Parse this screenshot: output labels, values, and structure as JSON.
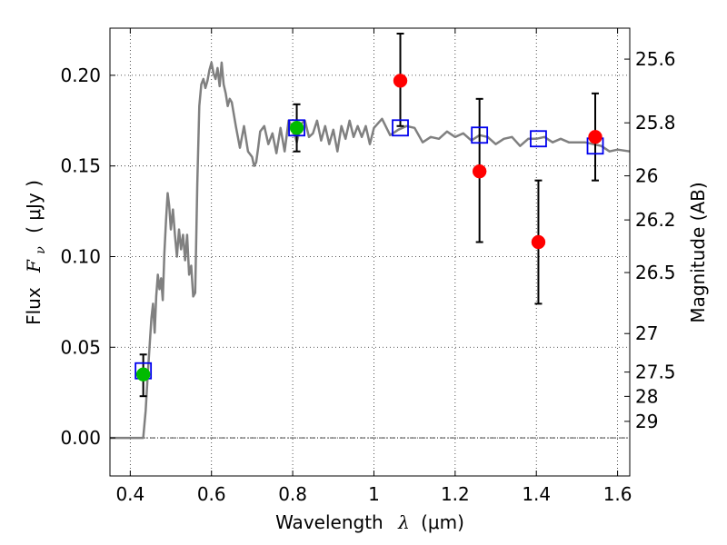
{
  "chart_data": {
    "type": "scatter",
    "xlabel": "Wavelength",
    "xlabel_symbol": "λ",
    "xlabel_unit": "(μm)",
    "ylabel": "Flux",
    "ylabel_symbol": "F",
    "ylabel_subscript": "ν",
    "ylabel_unit": "( μJy )",
    "y2label": "Magnitude (AB)",
    "xlim": [
      0.35,
      1.63
    ],
    "ylim": [
      -0.021,
      0.226
    ],
    "grid": true,
    "x_ticks": [
      {
        "value": 0.4,
        "label": "0.4"
      },
      {
        "value": 0.6,
        "label": "0.6"
      },
      {
        "value": 0.8,
        "label": "0.8"
      },
      {
        "value": 1.0,
        "label": "1"
      },
      {
        "value": 1.2,
        "label": "1.2"
      },
      {
        "value": 1.4,
        "label": "1.4"
      },
      {
        "value": 1.6,
        "label": "1.6"
      }
    ],
    "y_ticks": [
      {
        "value": 0.0,
        "label": "0.00"
      },
      {
        "value": 0.05,
        "label": "0.05"
      },
      {
        "value": 0.1,
        "label": "0.10"
      },
      {
        "value": 0.15,
        "label": "0.15"
      },
      {
        "value": 0.2,
        "label": "0.20"
      }
    ],
    "y2_ticks": [
      {
        "value": 25.6,
        "label": "25.6"
      },
      {
        "value": 25.8,
        "label": "25.8"
      },
      {
        "value": 26.0,
        "label": "26"
      },
      {
        "value": 26.2,
        "label": "26.2"
      },
      {
        "value": 26.5,
        "label": "26.5"
      },
      {
        "value": 27.0,
        "label": "27"
      },
      {
        "value": 27.5,
        "label": "27.5"
      },
      {
        "value": 28.0,
        "label": "28"
      },
      {
        "value": 29.0,
        "label": "29"
      }
    ],
    "zero_line": 0.0,
    "spectrum": {
      "color": "#808080",
      "x": [
        0.35,
        0.37,
        0.39,
        0.41,
        0.425,
        0.432,
        0.438,
        0.443,
        0.448,
        0.452,
        0.456,
        0.46,
        0.464,
        0.468,
        0.472,
        0.476,
        0.48,
        0.484,
        0.488,
        0.492,
        0.496,
        0.5,
        0.505,
        0.51,
        0.515,
        0.52,
        0.525,
        0.53,
        0.535,
        0.54,
        0.545,
        0.55,
        0.555,
        0.56,
        0.565,
        0.57,
        0.575,
        0.58,
        0.585,
        0.59,
        0.595,
        0.6,
        0.605,
        0.61,
        0.615,
        0.62,
        0.625,
        0.63,
        0.635,
        0.64,
        0.645,
        0.65,
        0.66,
        0.67,
        0.68,
        0.69,
        0.7,
        0.705,
        0.71,
        0.715,
        0.72,
        0.73,
        0.74,
        0.75,
        0.76,
        0.77,
        0.78,
        0.79,
        0.8,
        0.81,
        0.82,
        0.83,
        0.84,
        0.85,
        0.86,
        0.87,
        0.88,
        0.89,
        0.9,
        0.91,
        0.92,
        0.93,
        0.94,
        0.95,
        0.96,
        0.97,
        0.98,
        0.99,
        1.0,
        1.02,
        1.04,
        1.06,
        1.08,
        1.1,
        1.12,
        1.14,
        1.16,
        1.18,
        1.2,
        1.22,
        1.24,
        1.26,
        1.28,
        1.3,
        1.32,
        1.34,
        1.36,
        1.38,
        1.4,
        1.42,
        1.44,
        1.46,
        1.48,
        1.5,
        1.52,
        1.54,
        1.56,
        1.58,
        1.6,
        1.63
      ],
      "y": [
        0.0,
        0.0,
        0.0,
        0.0,
        0.0,
        0.0,
        0.015,
        0.035,
        0.052,
        0.066,
        0.074,
        0.058,
        0.078,
        0.09,
        0.082,
        0.088,
        0.076,
        0.102,
        0.12,
        0.135,
        0.128,
        0.115,
        0.126,
        0.112,
        0.1,
        0.115,
        0.104,
        0.112,
        0.098,
        0.112,
        0.09,
        0.095,
        0.078,
        0.08,
        0.14,
        0.183,
        0.195,
        0.198,
        0.193,
        0.197,
        0.203,
        0.207,
        0.201,
        0.198,
        0.204,
        0.194,
        0.207,
        0.195,
        0.19,
        0.183,
        0.187,
        0.185,
        0.172,
        0.16,
        0.172,
        0.158,
        0.155,
        0.15,
        0.152,
        0.16,
        0.169,
        0.172,
        0.162,
        0.168,
        0.157,
        0.171,
        0.158,
        0.175,
        0.171,
        0.163,
        0.173,
        0.175,
        0.166,
        0.168,
        0.175,
        0.164,
        0.172,
        0.162,
        0.17,
        0.158,
        0.172,
        0.165,
        0.175,
        0.166,
        0.172,
        0.166,
        0.172,
        0.162,
        0.171,
        0.176,
        0.167,
        0.17,
        0.172,
        0.171,
        0.163,
        0.166,
        0.165,
        0.169,
        0.166,
        0.168,
        0.164,
        0.167,
        0.166,
        0.162,
        0.165,
        0.166,
        0.161,
        0.165,
        0.165,
        0.166,
        0.163,
        0.165,
        0.163,
        0.163,
        0.163,
        0.162,
        0.161,
        0.158,
        0.159,
        0.158
      ]
    },
    "series": [
      {
        "marker": "open-square",
        "color": "#0000ee",
        "x": [
          0.432,
          0.81,
          1.065,
          1.26,
          1.405,
          1.545
        ],
        "y": [
          0.037,
          0.171,
          0.171,
          0.167,
          0.165,
          0.161
        ]
      },
      {
        "marker": "filled-circle",
        "color": "#00bb00",
        "x": [
          0.432,
          0.81
        ],
        "y": [
          0.035,
          0.171
        ],
        "yerr_low": [
          0.023,
          0.158
        ],
        "yerr_high": [
          0.046,
          0.184
        ]
      },
      {
        "marker": "filled-circle",
        "color": "#ff0000",
        "x": [
          1.065,
          1.26,
          1.405,
          1.545
        ],
        "y": [
          0.197,
          0.147,
          0.108,
          0.166
        ],
        "yerr_low": [
          0.172,
          0.108,
          0.074,
          0.142
        ],
        "yerr_high": [
          0.223,
          0.187,
          0.142,
          0.19
        ]
      }
    ]
  }
}
